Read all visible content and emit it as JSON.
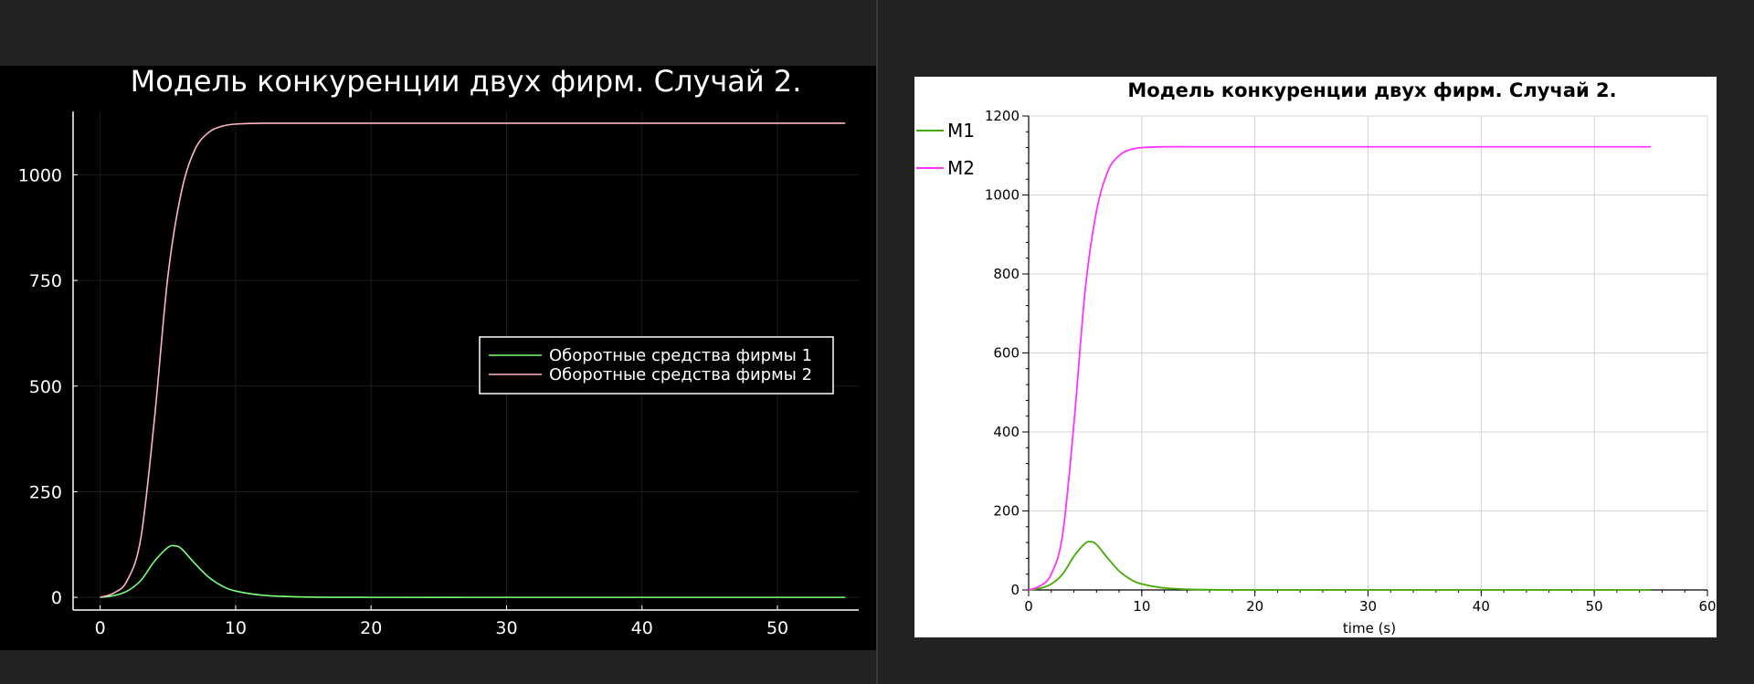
{
  "chart_data": [
    {
      "type": "line",
      "title": "Модель конкуренции двух фирм. Случай 2.",
      "xlabel": "",
      "ylabel": "",
      "xlim": [
        -2,
        56
      ],
      "ylim": [
        -30,
        1150
      ],
      "xticks": [
        0,
        10,
        20,
        30,
        40,
        50
      ],
      "yticks": [
        0,
        250,
        500,
        750,
        1000
      ],
      "grid": true,
      "legend_position": "right",
      "background": "#000000",
      "series": [
        {
          "name": "Оборотные средства фирмы 1",
          "color": "#7cff7c",
          "x": [
            0,
            1,
            2,
            3,
            4,
            5,
            5.5,
            6,
            7,
            8,
            9,
            10,
            12,
            15,
            20,
            30,
            40,
            55
          ],
          "y": [
            0,
            4,
            15,
            40,
            85,
            118,
            122,
            115,
            80,
            48,
            27,
            15,
            5,
            1,
            0,
            0,
            0,
            0
          ]
        },
        {
          "name": "Оборотные средства фирмы 2",
          "color": "#ffb6c1",
          "x": [
            0,
            1,
            2,
            3,
            4,
            5,
            6,
            7,
            8,
            9,
            10,
            12,
            15,
            20,
            30,
            40,
            55
          ],
          "y": [
            0,
            10,
            40,
            140,
            420,
            760,
            960,
            1060,
            1100,
            1115,
            1120,
            1122,
            1122,
            1122,
            1122,
            1122,
            1122
          ]
        }
      ]
    },
    {
      "type": "line",
      "title": "Модель конкуренции двух фирм. Случай 2.",
      "xlabel": "time (s)",
      "ylabel": "",
      "xlim": [
        0,
        60
      ],
      "ylim": [
        0,
        1200
      ],
      "xticks": [
        0,
        10,
        20,
        30,
        40,
        50,
        60
      ],
      "yticks": [
        0,
        200,
        400,
        600,
        800,
        1000,
        1200
      ],
      "grid": true,
      "legend_position": "top-left",
      "background": "#ffffff",
      "series": [
        {
          "name": "M1",
          "color": "#44aa00",
          "x": [
            0,
            1,
            2,
            3,
            4,
            5,
            5.5,
            6,
            7,
            8,
            9,
            10,
            12,
            15,
            20,
            30,
            40,
            55
          ],
          "y": [
            0,
            4,
            15,
            40,
            85,
            118,
            122,
            115,
            80,
            48,
            27,
            15,
            5,
            1,
            0,
            0,
            0,
            0
          ]
        },
        {
          "name": "M2",
          "color": "#ff33ff",
          "x": [
            0,
            1,
            2,
            3,
            4,
            5,
            6,
            7,
            8,
            9,
            10,
            12,
            15,
            20,
            30,
            40,
            55
          ],
          "y": [
            0,
            10,
            40,
            140,
            420,
            760,
            960,
            1060,
            1100,
            1115,
            1120,
            1122,
            1122,
            1122,
            1122,
            1122,
            1122
          ]
        }
      ]
    }
  ]
}
